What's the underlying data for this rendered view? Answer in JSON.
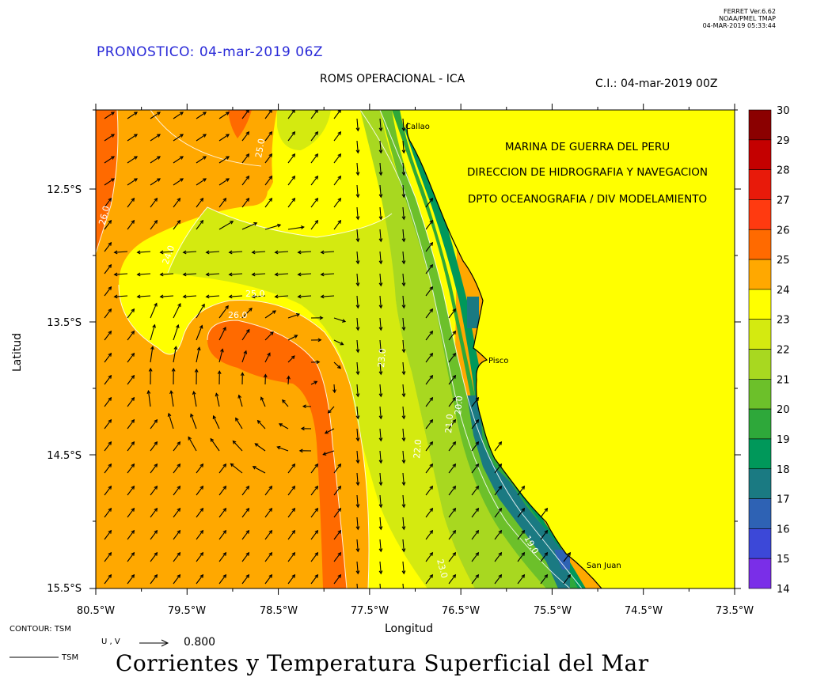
{
  "header": {
    "ferret_lines": [
      "FERRET  Ver.6.62",
      "NOAA/PMEL TMAP",
      "04-MAR-2019 05:33:44"
    ],
    "forecast": "PRONOSTICO: 04-mar-2019 06Z",
    "subtitle": "ROMS OPERACIONAL - ICA",
    "initial_condition": "C.I.: 04-mar-2019 00Z"
  },
  "organization": {
    "line1": "MARINA DE GUERRA DEL PERU",
    "line2": "DIRECCION DE HIDROGRAFIA Y NAVEGACION",
    "line3": "DPTO OCEANOGRAFIA / DIV MODELAMIENTO"
  },
  "places": {
    "callao": "Callao",
    "pisco": "Pisco",
    "san_juan": "San Juan"
  },
  "axes": {
    "xlabel": "Longitud",
    "ylabel": "Latitud",
    "x_ticks": [
      "80.5°W",
      "79.5°W",
      "78.5°W",
      "77.5°W",
      "76.5°W",
      "75.5°W",
      "74.5°W",
      "73.5°W"
    ],
    "y_ticks": [
      "12.5°S",
      "13.5°S",
      "14.5°S",
      "15.5°S"
    ]
  },
  "contour_labels": [
    "26.0",
    "25.0",
    "24.0",
    "25.0",
    "26.0",
    "23.0",
    "22.0",
    "21.0",
    "20.0",
    "23.0",
    "19.0"
  ],
  "colorbar": {
    "labels": [
      "30",
      "29",
      "28",
      "27",
      "26",
      "25",
      "24",
      "23",
      "22",
      "21",
      "20",
      "19",
      "18",
      "17",
      "16",
      "15",
      "14"
    ],
    "colors": [
      "#8b0000",
      "#c40000",
      "#e81a0a",
      "#ff3a10",
      "#ff6a00",
      "#ffa800",
      "#ffff00",
      "#d4ea10",
      "#a8d820",
      "#6cc02a",
      "#2ea83a",
      "#00985a",
      "#1a7a82",
      "#2e62b4",
      "#3c48d8",
      "#7a2ee8",
      "#d81ae8"
    ]
  },
  "footer": {
    "contour": "CONTOUR: TSM",
    "vector": "U , V",
    "vector_value": "0.800",
    "tsm_legend": "TSM",
    "title": "Corrientes y Temperatura Superficial del Mar"
  }
}
